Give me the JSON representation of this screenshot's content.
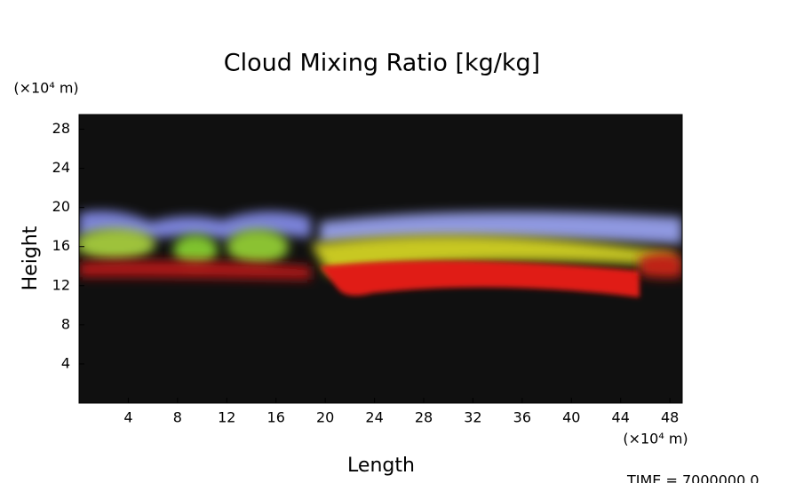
{
  "chart_data": {
    "type": "heatmap",
    "title": "Cloud Mixing Ratio [kg/kg]",
    "x_label": "Length",
    "y_label": "Height",
    "x_unit": "(×10⁴ m)",
    "y_unit": "(×10⁴ m)",
    "annotation": "TIME = 7000000.0",
    "xlim": [
      0,
      49
    ],
    "xticks": [
      4,
      8,
      12,
      16,
      20,
      24,
      28,
      32,
      36,
      40,
      44,
      48
    ],
    "ylim": [
      0,
      29.5
    ],
    "yticks": [
      4,
      8,
      12,
      16,
      20,
      24,
      28
    ],
    "background": "#101010"
  }
}
